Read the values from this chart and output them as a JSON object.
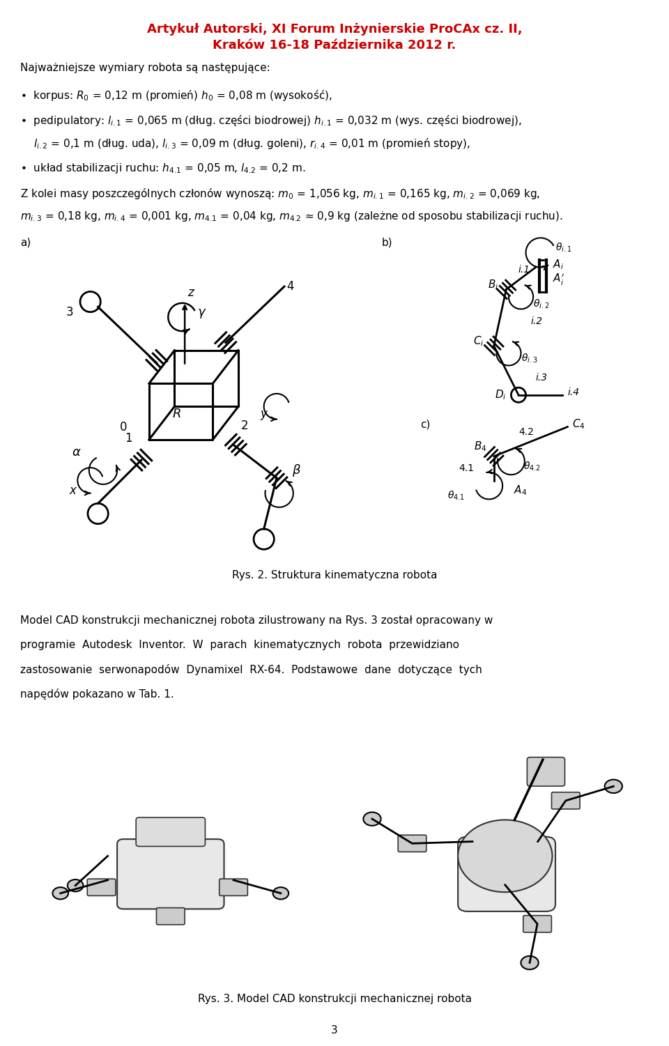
{
  "title_line1": "Artykuł Autorski, XI Forum Inżynierskie ProCAx cz. II,",
  "title_line2": "Kraków 16-18 Października 2012 r.",
  "title_color": "#cc0000",
  "bg_color": "#ffffff",
  "caption_rys2": "Rys. 2. Struktura kinematyczna robota",
  "caption_rys3": "Rys. 3. Model CAD konstrukcji mechanicznej robota",
  "page_number": "3",
  "fontsize_title": 13,
  "fontsize_body": 11.0,
  "fontsize_caption": 11.0
}
